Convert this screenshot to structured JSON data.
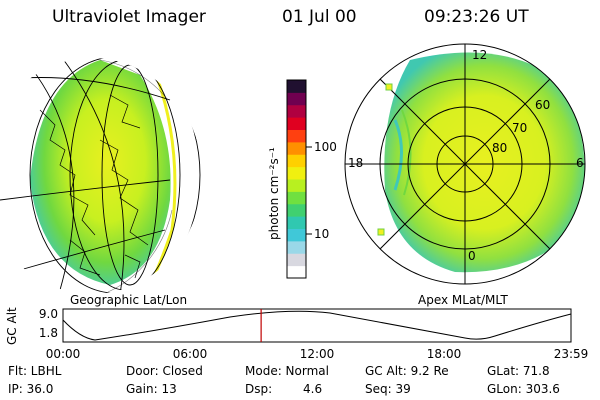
{
  "header": {
    "instrument": "Ultraviolet Imager",
    "date": "01 Jul 00",
    "time": "09:23:26 UT"
  },
  "colorbar": {
    "unit_label": "photon cm⁻²s⁻¹",
    "ticks": [
      {
        "label": "100"
      },
      {
        "label": "10"
      }
    ],
    "colors": [
      "#ffffff",
      "#d8d8e0",
      "#9ad8e8",
      "#40c8d8",
      "#30c8b0",
      "#40d070",
      "#70e040",
      "#b8f020",
      "#f0f010",
      "#ffd000",
      "#ff9000",
      "#ff4010",
      "#e00020",
      "#b00040",
      "#700050",
      "#201030"
    ]
  },
  "geo_panel": {
    "label": "Geographic Lat/Lon"
  },
  "polar_panel": {
    "label": "Apex MLat/MLT",
    "mlt_labels": {
      "top": "12",
      "left": "18",
      "right": "6",
      "bottom": "0"
    },
    "lat_labels": [
      "60",
      "70",
      "80"
    ]
  },
  "timeline": {
    "axis_label": "GC Alt",
    "y_ticks": [
      "9.0",
      "1.8"
    ],
    "x_ticks": [
      "00:00",
      "06:00",
      "12:00",
      "18:00",
      "23:59"
    ],
    "current_fraction": 0.39
  },
  "info": {
    "filter": "Flt: LBHL",
    "door": "Door: Closed",
    "mode": "Mode: Normal",
    "gc_alt": "GC Alt: 9.2 Re",
    "glat": "GLat: 71.8",
    "ip": "IP: 36.0",
    "gain": "Gain: 13",
    "dsp_label": "Dsp:",
    "dsp_value": "4.6",
    "seq": "Seq: 39",
    "glon": "GLon: 303.6"
  }
}
